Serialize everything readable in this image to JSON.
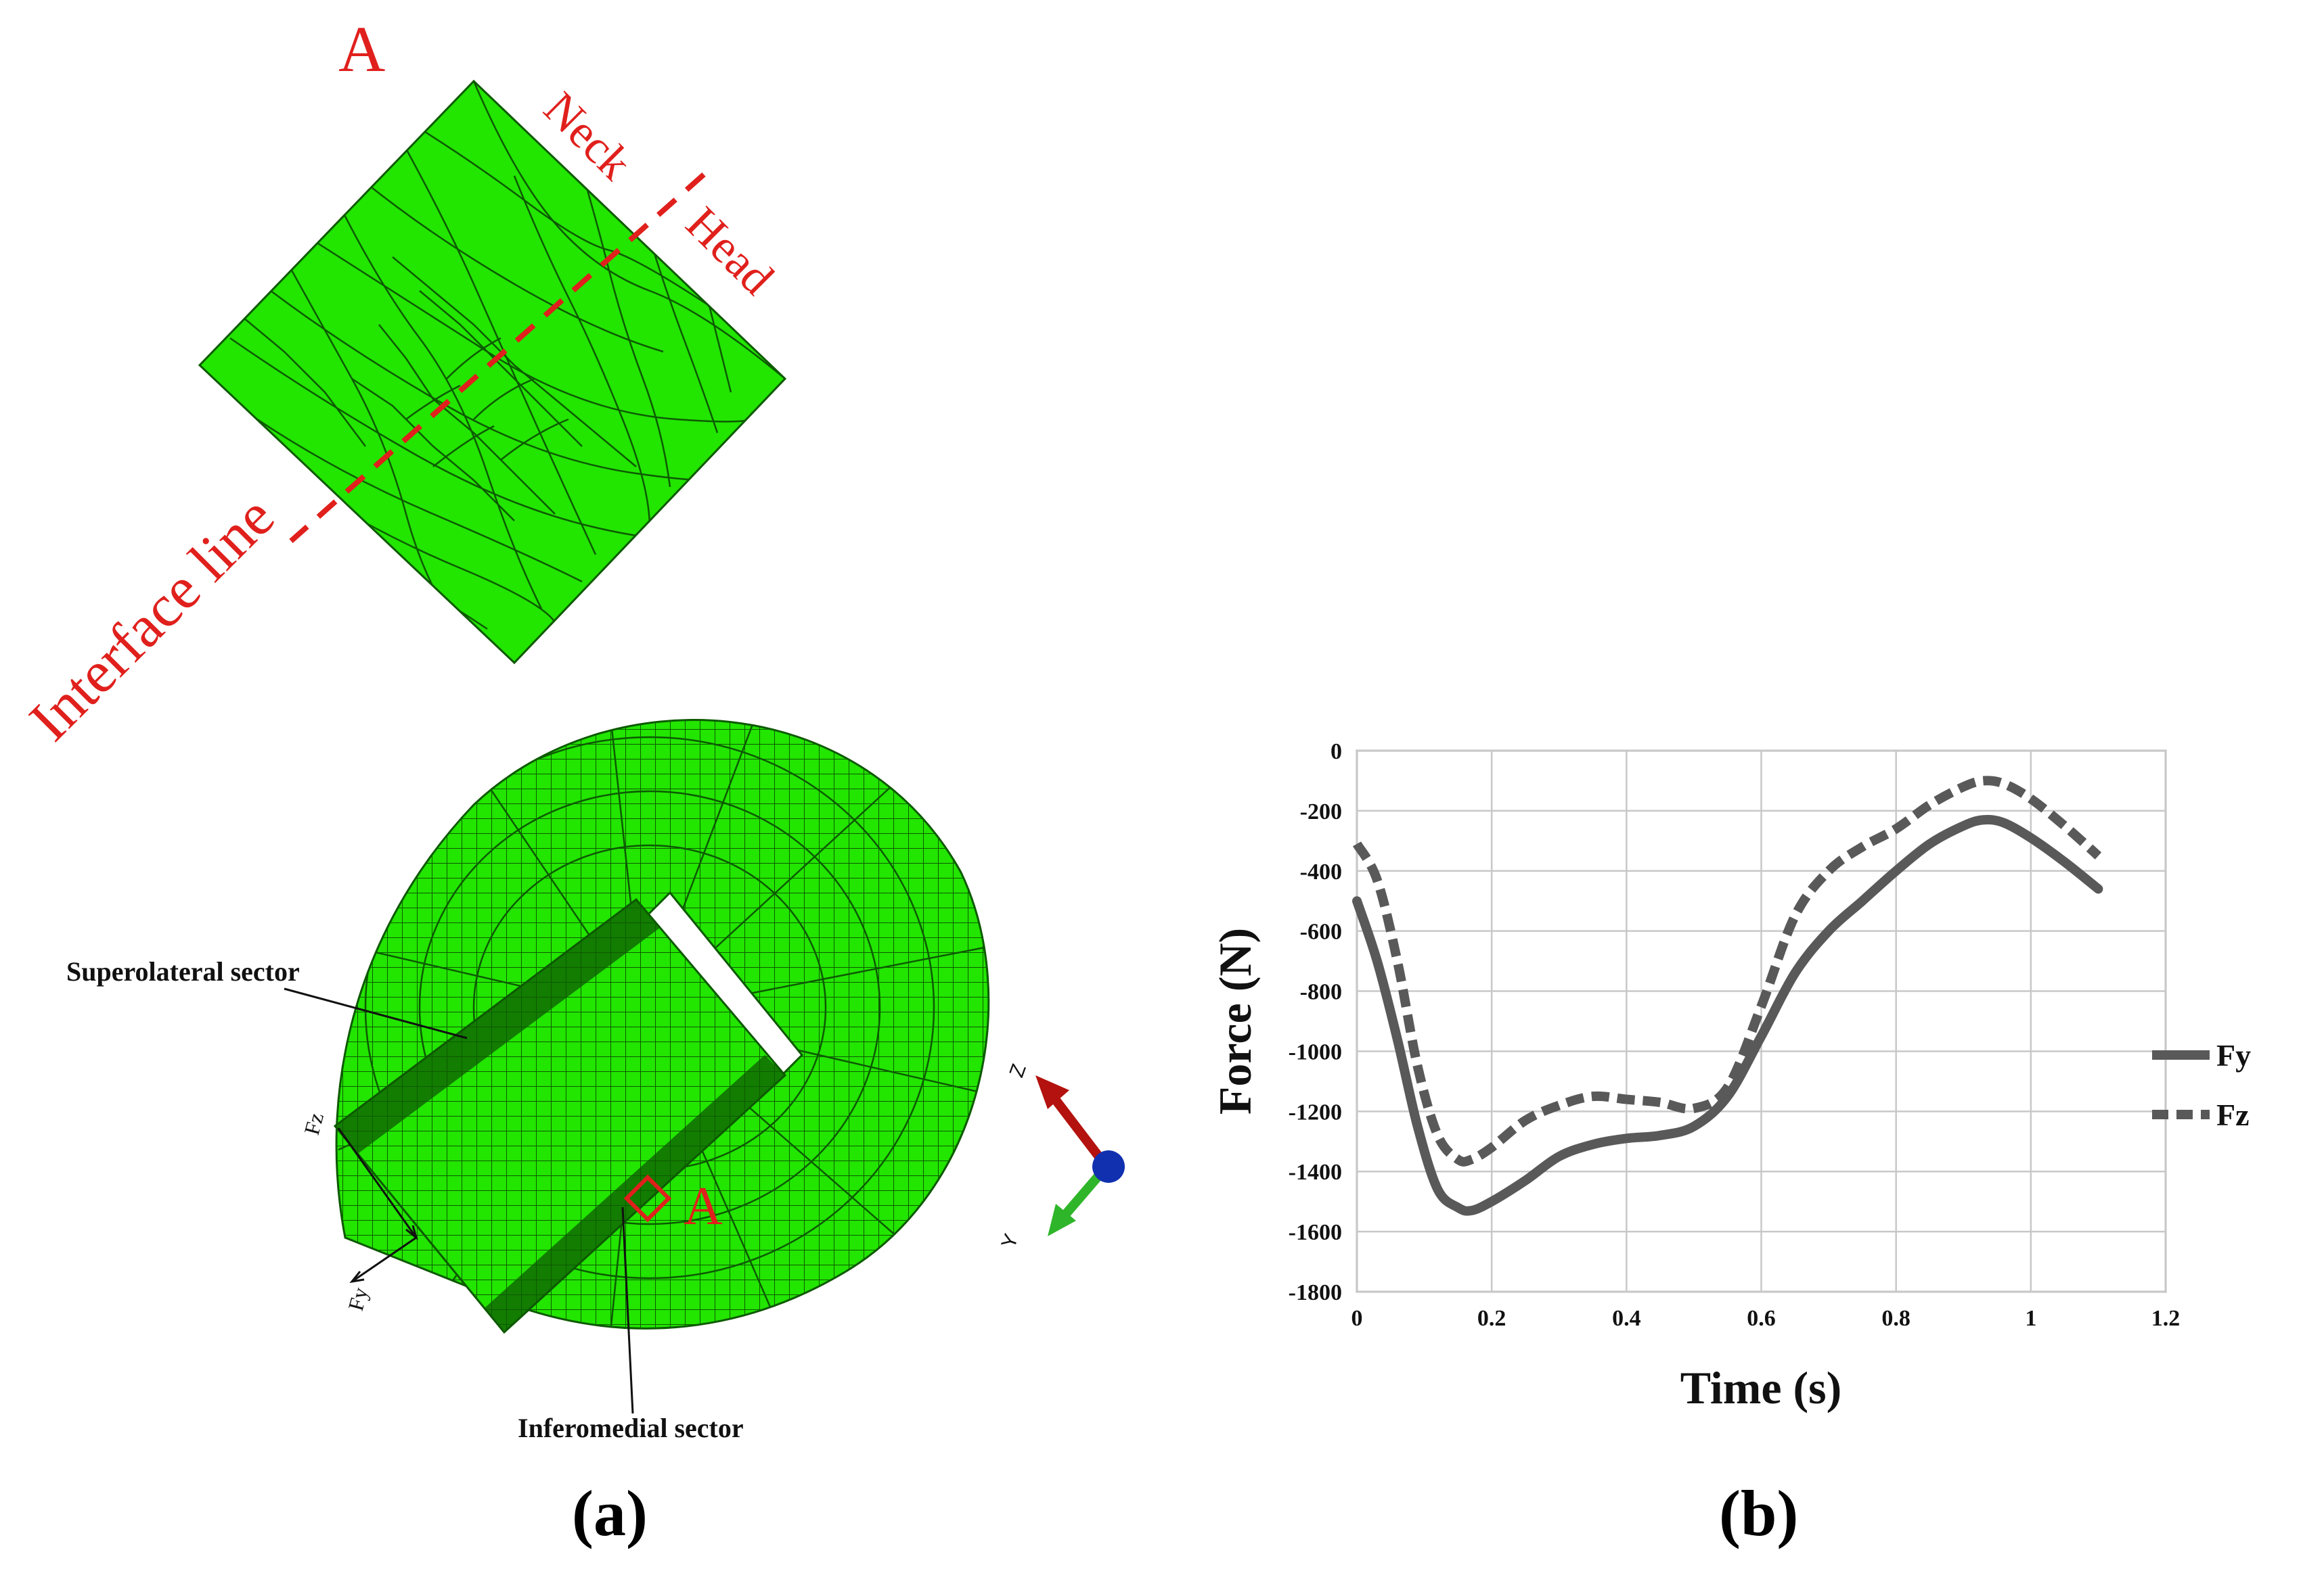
{
  "panel_a": {
    "panel_label": "(a)",
    "detail_label": "A",
    "detail_callout_label": "A",
    "detail_labels": {
      "neck": "Neck",
      "head": "Head",
      "interface": "Interface line"
    },
    "sector_labels": {
      "superolateral": "Superolateral sector",
      "inferomedial": "Inferomedial sector"
    },
    "force_labels": {
      "fz": "Fz",
      "fy": "Fy"
    },
    "triad_labels": {
      "z": "Z",
      "y": "Y"
    },
    "colors": {
      "mesh_fill": "#22e500",
      "mesh_line": "#0d5a00",
      "annotation": "#e0201c",
      "triad_z": "#b3120e",
      "triad_y": "#2fb52a",
      "triad_origin": "#1030b0"
    }
  },
  "panel_b": {
    "panel_label": "(b)",
    "chart_data": {
      "type": "line",
      "title": "",
      "xlabel": "Time (s)",
      "ylabel": "Force (N)",
      "xlim": [
        0,
        1.2
      ],
      "ylim": [
        -1800,
        0
      ],
      "x_ticks": [
        "0",
        "0.2",
        "0.4",
        "0.6",
        "0.8",
        "1",
        "1.2"
      ],
      "y_ticks": [
        "0",
        "-200",
        "-400",
        "-600",
        "-800",
        "-1000",
        "-1200",
        "-1400",
        "-1600",
        "-1800"
      ],
      "grid": true,
      "legend_position": "right",
      "series": [
        {
          "name": "Fy",
          "style": "solid",
          "color": "#595959",
          "x": [
            0,
            0.03,
            0.06,
            0.09,
            0.12,
            0.15,
            0.17,
            0.2,
            0.25,
            0.3,
            0.35,
            0.4,
            0.45,
            0.5,
            0.55,
            0.6,
            0.65,
            0.7,
            0.75,
            0.8,
            0.85,
            0.9,
            0.93,
            0.96,
            1.0,
            1.05,
            1.1
          ],
          "y": [
            -500,
            -700,
            -960,
            -1250,
            -1460,
            -1520,
            -1530,
            -1500,
            -1430,
            -1350,
            -1310,
            -1290,
            -1280,
            -1250,
            -1150,
            -950,
            -740,
            -600,
            -500,
            -400,
            -310,
            -250,
            -230,
            -240,
            -290,
            -370,
            -460
          ]
        },
        {
          "name": "Fz",
          "style": "dashed",
          "color": "#595959",
          "x": [
            0,
            0.03,
            0.06,
            0.09,
            0.12,
            0.15,
            0.17,
            0.2,
            0.25,
            0.3,
            0.35,
            0.4,
            0.45,
            0.5,
            0.55,
            0.6,
            0.65,
            0.7,
            0.75,
            0.8,
            0.85,
            0.9,
            0.93,
            0.96,
            1.0,
            1.05,
            1.1
          ],
          "y": [
            -310,
            -430,
            -700,
            -1050,
            -1280,
            -1360,
            -1360,
            -1320,
            -1230,
            -1180,
            -1150,
            -1160,
            -1170,
            -1190,
            -1120,
            -850,
            -550,
            -400,
            -320,
            -260,
            -180,
            -120,
            -100,
            -110,
            -160,
            -250,
            -350
          ]
        }
      ]
    }
  }
}
